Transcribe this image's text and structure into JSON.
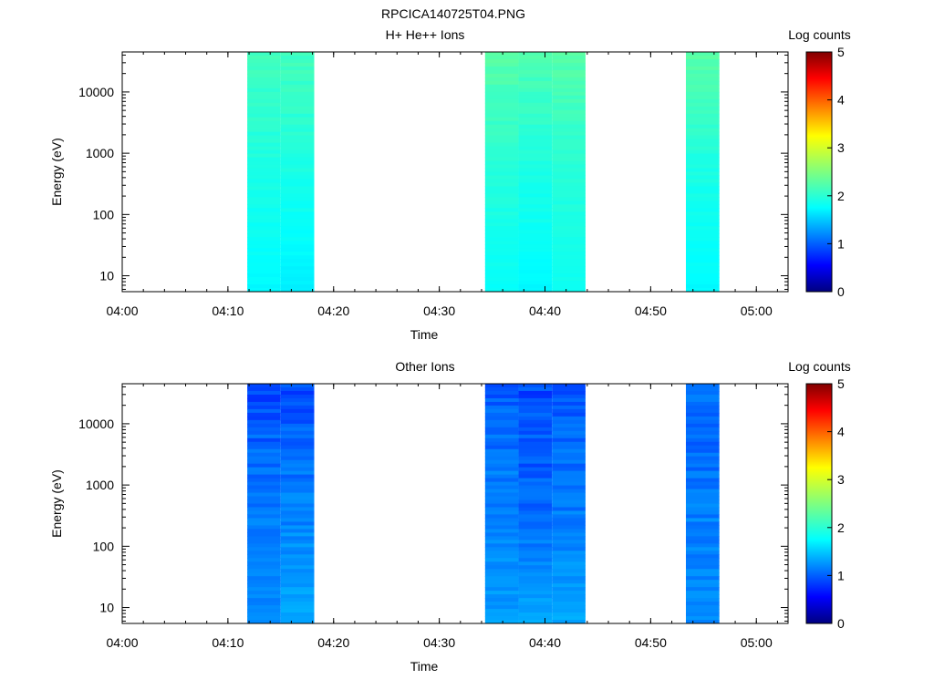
{
  "figure_title": "RPCICA140725T04.PNG",
  "colorbar": {
    "label": "Log counts",
    "min": 0,
    "max": 5,
    "ticks": [
      "0",
      "1",
      "2",
      "3",
      "4",
      "5"
    ],
    "colormap": "jet"
  },
  "chart_data": [
    {
      "type": "heatmap",
      "title": "H+ He++ Ions",
      "xlabel": "Time",
      "ylabel": "Energy (eV)",
      "x_range": [
        "04:00",
        "05:03"
      ],
      "x_ticks": [
        "04:00",
        "04:10",
        "04:20",
        "04:30",
        "04:40",
        "04:50",
        "05:00"
      ],
      "y_scale": "log",
      "y_range": [
        5.5,
        45000
      ],
      "y_ticks": [
        "10",
        "100",
        "1000",
        "10000"
      ],
      "colorbar_label": "Log counts",
      "z_range": [
        0,
        5
      ],
      "time_columns": [
        {
          "start": "04:11:50",
          "end": "04:15:00",
          "log_counts_top_to_bottom": [
            2.2,
            2.0,
            1.85
          ]
        },
        {
          "start": "04:15:00",
          "end": "04:18:10",
          "log_counts_top_to_bottom": [
            2.2,
            2.0,
            1.8
          ]
        },
        {
          "start": "04:34:20",
          "end": "04:37:30",
          "log_counts_top_to_bottom": [
            2.3,
            2.05,
            1.9
          ]
        },
        {
          "start": "04:37:30",
          "end": "04:40:40",
          "log_counts_top_to_bottom": [
            2.25,
            2.0,
            1.85
          ]
        },
        {
          "start": "04:40:40",
          "end": "04:43:50",
          "log_counts_top_to_bottom": [
            2.3,
            2.05,
            1.95
          ]
        },
        {
          "start": "04:53:20",
          "end": "04:56:30",
          "log_counts_top_to_bottom": [
            2.3,
            2.0,
            1.85
          ]
        }
      ]
    },
    {
      "type": "heatmap",
      "title": "Other Ions",
      "xlabel": "Time",
      "ylabel": "Energy (eV)",
      "x_range": [
        "04:00",
        "05:03"
      ],
      "x_ticks": [
        "04:00",
        "04:10",
        "04:20",
        "04:30",
        "04:40",
        "04:50",
        "05:00"
      ],
      "y_scale": "log",
      "y_range": [
        5.5,
        45000
      ],
      "y_ticks": [
        "10",
        "100",
        "1000",
        "10000"
      ],
      "colorbar_label": "Log counts",
      "z_range": [
        0,
        5
      ],
      "time_columns": [
        {
          "start": "04:11:50",
          "end": "04:15:00",
          "log_counts_top_to_bottom": [
            1.0,
            1.2,
            1.3
          ]
        },
        {
          "start": "04:15:00",
          "end": "04:18:10",
          "log_counts_top_to_bottom": [
            1.0,
            1.25,
            1.45
          ]
        },
        {
          "start": "04:34:20",
          "end": "04:37:30",
          "log_counts_top_to_bottom": [
            1.05,
            1.25,
            1.4
          ]
        },
        {
          "start": "04:37:30",
          "end": "04:40:40",
          "log_counts_top_to_bottom": [
            1.0,
            1.1,
            1.45
          ]
        },
        {
          "start": "04:40:40",
          "end": "04:43:50",
          "log_counts_top_to_bottom": [
            1.05,
            1.2,
            1.45
          ]
        },
        {
          "start": "04:53:20",
          "end": "04:56:30",
          "log_counts_top_to_bottom": [
            1.1,
            1.25,
            1.3
          ]
        }
      ]
    }
  ]
}
